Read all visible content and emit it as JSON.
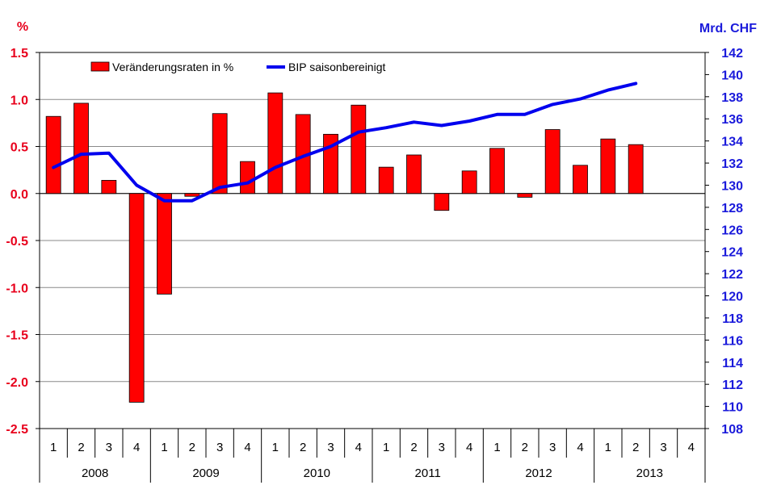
{
  "chart_data": {
    "type": "bar+line",
    "left_axis": {
      "unit": "%",
      "min": -2.5,
      "max": 1.5,
      "step": 0.5,
      "ticks": [
        "1.5",
        "1.0",
        "0.5",
        "0.0",
        "-0.5",
        "-1.0",
        "-1.5",
        "-2.0",
        "-2.5"
      ]
    },
    "right_axis": {
      "unit": "Mrd. CHF",
      "min": 108,
      "max": 142,
      "step": 2,
      "ticks": [
        "142",
        "140",
        "138",
        "136",
        "134",
        "132",
        "130",
        "128",
        "126",
        "124",
        "122",
        "120",
        "118",
        "116",
        "114",
        "112",
        "110",
        "108"
      ]
    },
    "years": [
      "2008",
      "2009",
      "2010",
      "2011",
      "2012",
      "2013"
    ],
    "quarters": [
      "1",
      "2",
      "3",
      "4"
    ],
    "series": [
      {
        "name": "Veränderungsraten in %",
        "type": "bar",
        "axis": "left",
        "values": [
          0.82,
          0.96,
          0.14,
          -2.22,
          -1.07,
          -0.03,
          0.85,
          0.34,
          1.07,
          0.84,
          0.63,
          0.94,
          0.28,
          0.41,
          -0.18,
          0.24,
          0.48,
          -0.04,
          0.68,
          0.3,
          0.58,
          0.52,
          null,
          null
        ]
      },
      {
        "name": "BIP saisonbereinigt",
        "type": "line",
        "axis": "right",
        "values": [
          131.6,
          132.8,
          132.9,
          130.0,
          128.6,
          128.6,
          129.8,
          130.2,
          131.6,
          132.6,
          133.5,
          134.8,
          135.2,
          135.7,
          135.4,
          135.8,
          136.4,
          136.4,
          137.3,
          137.8,
          138.6,
          139.2,
          null,
          null
        ]
      }
    ],
    "colors": {
      "bar": "#ff0000",
      "line": "#0000ee",
      "left_axis": "#e8001c",
      "right_axis": "#1a1adb"
    }
  }
}
